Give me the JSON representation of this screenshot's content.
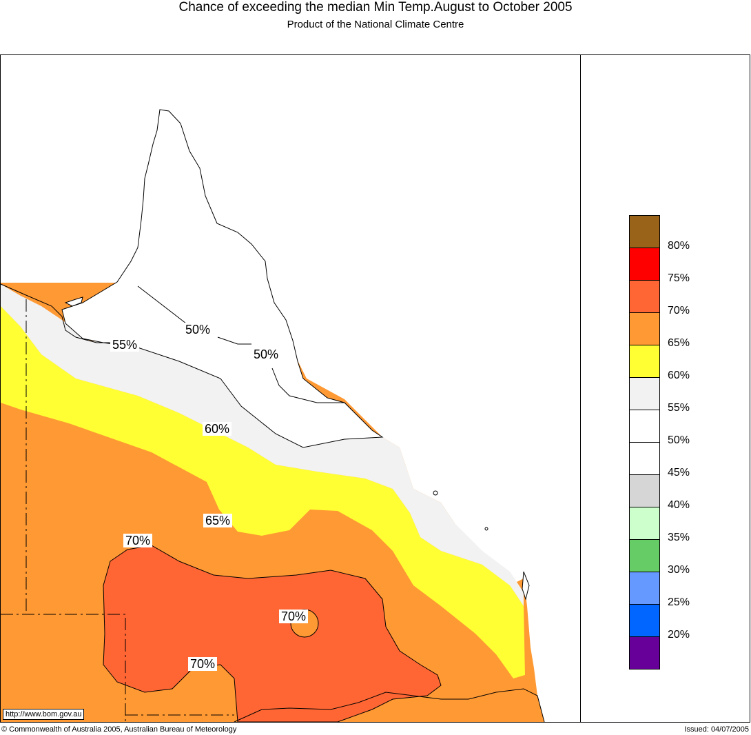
{
  "header": {
    "title": "Chance of exceeding the median Min Temp.August to October 2005",
    "subtitle": "Product of the National Climate Centre"
  },
  "colors": {
    "c80": "#996319",
    "c75": "#ff0000",
    "c70": "#ff6633",
    "c65": "#ff9933",
    "c60": "#ffff33",
    "c55": "#f2f2f2",
    "c50": "#ffffff",
    "c45": "#ffffff",
    "c40": "#d6d6d6",
    "c35": "#ccffcc",
    "c30": "#66cc66",
    "c25": "#6699ff",
    "c20": "#0066ff",
    "c15": "#660099"
  },
  "contour_labels": {
    "l55": "55%",
    "l50a": "50%",
    "l50b": "50%",
    "l60": "60%",
    "l65": "65%",
    "l70a": "70%",
    "l70b": "70%",
    "l70c": "70%"
  },
  "legend": {
    "labels": [
      "80%",
      "75%",
      "70%",
      "65%",
      "60%",
      "55%",
      "50%",
      "45%",
      "40%",
      "35%",
      "30%",
      "25%",
      "20%"
    ],
    "swatches": [
      "#996319",
      "#ff0000",
      "#ff6633",
      "#ff9933",
      "#ffff33",
      "#f2f2f2",
      "#ffffff",
      "#ffffff",
      "#d6d6d6",
      "#ccffcc",
      "#66cc66",
      "#6699ff",
      "#0066ff",
      "#660099"
    ]
  },
  "footer": {
    "url": "http://www.bom.gov.au",
    "copyright": "© Commonwealth of Australia 2005, Australian Bureau of Meteorology",
    "issued": "Issued: 04/07/2005"
  }
}
